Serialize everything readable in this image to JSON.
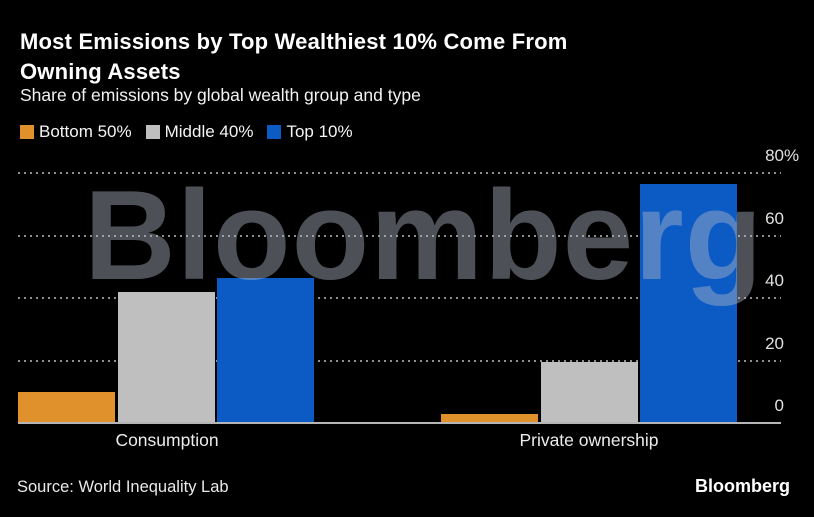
{
  "header": {
    "title": "Most Emissions by Top Wealthiest 10% Come From\nOwning Assets",
    "subtitle": "Share of emissions by global wealth group and type"
  },
  "legend": [
    {
      "label": "Bottom 50%",
      "color": "#E1912C"
    },
    {
      "label": "Middle 40%",
      "color": "#BFBFBF"
    },
    {
      "label": "Top 10%",
      "color": "#0C5BC5"
    }
  ],
  "chart_data": {
    "type": "bar",
    "title": "Most Emissions by Top Wealthiest 10% Come From Owning Assets",
    "subtitle": "Share of emissions by global wealth group and type",
    "categories": [
      "Consumption",
      "Private ownership"
    ],
    "series": [
      {
        "name": "Bottom 50%",
        "color": "#E1912C",
        "values": [
          10,
          3
        ]
      },
      {
        "name": "Middle 40%",
        "color": "#BFBFBF",
        "values": [
          42,
          19.5
        ]
      },
      {
        "name": "Top 10%",
        "color": "#0C5BC5",
        "values": [
          46.5,
          76.5
        ]
      }
    ],
    "ylabel": "",
    "xlabel": "",
    "ylim": [
      0,
      80
    ],
    "yticks": [
      0,
      20,
      40,
      60,
      80
    ],
    "ytick_top_suffix": "%",
    "grid": "dotted-horizontal",
    "legend_position": "top-left",
    "watermark": "Bloomberg"
  },
  "footer": {
    "source": "Source: World Inequality Lab",
    "logo": "Bloomberg"
  },
  "colors": {
    "background": "#000000",
    "gridline": "#8f8f8f",
    "baseline": "#b5b5b5",
    "text": "#ffffff"
  }
}
